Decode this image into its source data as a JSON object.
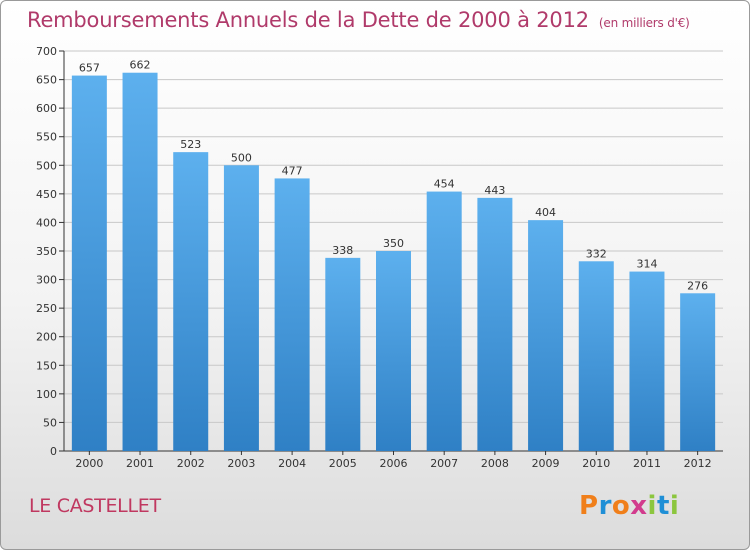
{
  "title": "Remboursements Annuels de la Dette de 2000 à 2012",
  "subtitle": "(en milliers d'€)",
  "city": "LE CASTELLET",
  "logo": {
    "letters": [
      "P",
      "r",
      "o",
      "x",
      "i",
      "t",
      "i"
    ],
    "colors": [
      "#f07f1a",
      "#1f8fd6",
      "#f07f1a",
      "#d23b8d",
      "#8cc63e",
      "#1f8fd6",
      "#8cc63e"
    ]
  },
  "colors": {
    "bar": "#4aa3e6",
    "bar_dark": "#2e7fc4",
    "title": "#b03a6a",
    "city": "#c03860"
  },
  "chart_data": {
    "type": "bar",
    "categories": [
      "2000",
      "2001",
      "2002",
      "2003",
      "2004",
      "2005",
      "2006",
      "2007",
      "2008",
      "2009",
      "2010",
      "2011",
      "2012"
    ],
    "values": [
      657,
      662,
      523,
      500,
      477,
      338,
      350,
      454,
      443,
      404,
      332,
      314,
      276
    ],
    "ylim": [
      0,
      700
    ],
    "yticks": [
      0,
      50,
      100,
      150,
      200,
      250,
      300,
      350,
      400,
      450,
      500,
      550,
      600,
      650,
      700
    ],
    "grid": true
  }
}
